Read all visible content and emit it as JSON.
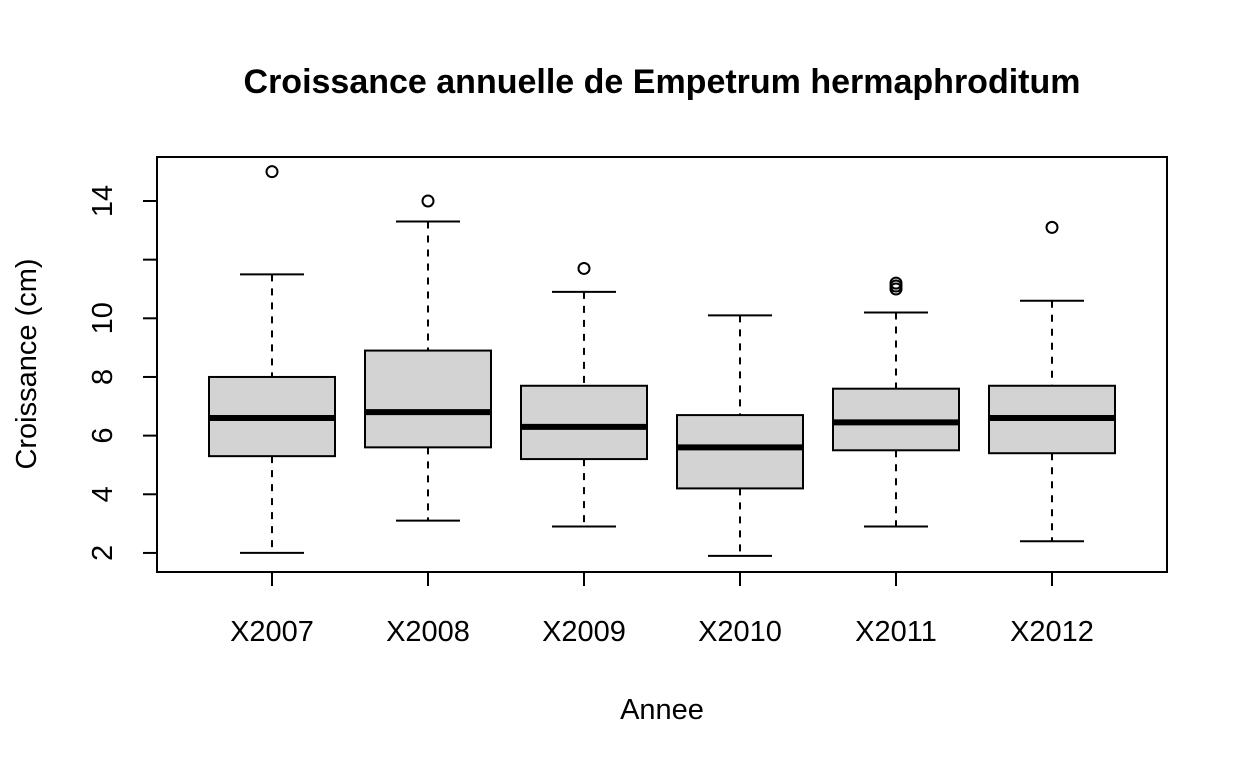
{
  "chart_data": {
    "type": "boxplot",
    "title": "Croissance annuelle de Empetrum hermaphroditum",
    "xlabel": "Annee",
    "ylabel": "Croissance (cm)",
    "ylim": [
      1.35,
      15.5
    ],
    "yticks": [
      2,
      4,
      6,
      8,
      10,
      12,
      14
    ],
    "ytick_labels": [
      "2",
      "4",
      "6",
      "8",
      "10",
      "",
      "14"
    ],
    "box_fill": "#d3d3d3",
    "categories": [
      "X2007",
      "X2008",
      "X2009",
      "X2010",
      "X2011",
      "X2012"
    ],
    "boxes": [
      {
        "min": 2.0,
        "q1": 5.3,
        "median": 6.6,
        "q3": 8.0,
        "max": 11.5,
        "outliers": [
          15.0
        ]
      },
      {
        "min": 3.1,
        "q1": 5.6,
        "median": 6.8,
        "q3": 8.9,
        "max": 13.3,
        "outliers": [
          14.0
        ]
      },
      {
        "min": 2.9,
        "q1": 5.2,
        "median": 6.3,
        "q3": 7.7,
        "max": 10.9,
        "outliers": [
          11.7
        ]
      },
      {
        "min": 1.9,
        "q1": 4.2,
        "median": 5.6,
        "q3": 6.7,
        "max": 10.1,
        "outliers": []
      },
      {
        "min": 2.9,
        "q1": 5.5,
        "median": 6.45,
        "q3": 7.6,
        "max": 10.2,
        "outliers": [
          11.0,
          11.1,
          11.2
        ]
      },
      {
        "min": 2.4,
        "q1": 5.4,
        "median": 6.6,
        "q3": 7.7,
        "max": 10.6,
        "outliers": [
          13.1
        ]
      }
    ]
  }
}
